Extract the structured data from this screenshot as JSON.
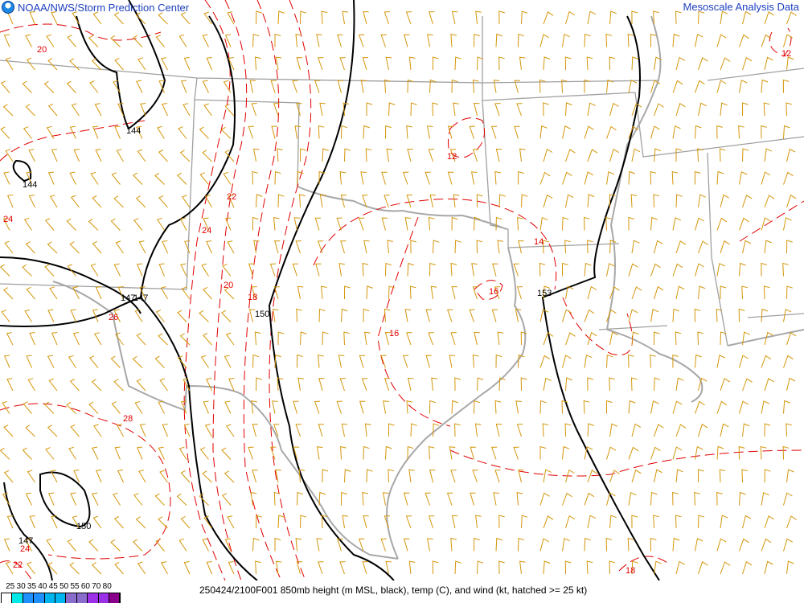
{
  "header": {
    "left_title": "NOAA/NWS/Storm Prediction Center",
    "right_title": "Mesoscale Analysis Data",
    "logo_icon": "noaa-logo-icon"
  },
  "map": {
    "height_labels": [
      "144",
      "144",
      "147",
      "147",
      "150",
      "153",
      "150",
      "147"
    ],
    "temp_labels": [
      "20",
      "24",
      "22",
      "24",
      "20",
      "18",
      "26",
      "28",
      "24",
      "22",
      "12",
      "14",
      "16",
      "16",
      "12",
      "18"
    ],
    "colors": {
      "height": "#000000",
      "temp": "#e00000",
      "wind": "#d4960a",
      "borders": "#a0a0a0",
      "coast": "#a8a8a8"
    }
  },
  "footer": {
    "legend_values": [
      "25",
      "30",
      "35",
      "40",
      "45",
      "50",
      "55",
      "60",
      "70",
      "80"
    ],
    "legend_colors": [
      "#ffffff",
      "#00e8e8",
      "#1e90ff",
      "#1e90ff",
      "#00b4f0",
      "#00b4f0",
      "#8a6ccc",
      "#8a6ccc",
      "#9b30e8",
      "#9b30e8",
      "#8b008b"
    ],
    "caption": "250424/2100F001 850mb height (m MSL, black), temp (C), and wind (kt, hatched >= 25 kt)"
  }
}
